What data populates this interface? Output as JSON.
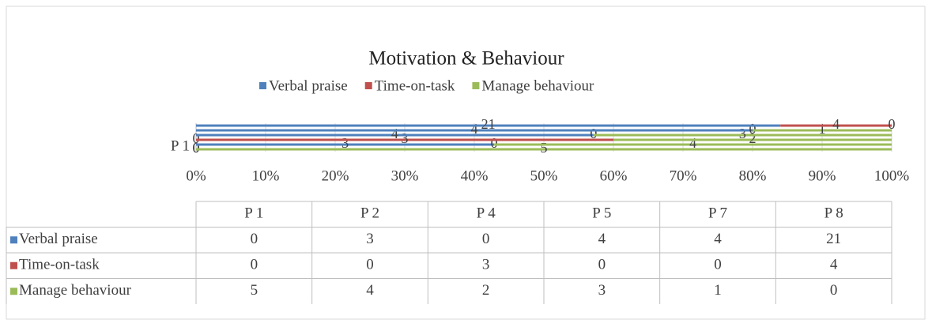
{
  "chart_data": {
    "type": "bar",
    "orientation": "horizontal",
    "stacking": "percent",
    "title": "Motivation & Behaviour",
    "categories": [
      "P 1",
      "P 2",
      "P 4",
      "P 5",
      "P 7",
      "P 8"
    ],
    "series": [
      {
        "name": "Verbal praise",
        "color": "#4f81bd",
        "values": [
          0,
          3,
          0,
          4,
          4,
          21
        ]
      },
      {
        "name": "Time-on-task",
        "color": "#c0504d",
        "values": [
          0,
          0,
          3,
          0,
          0,
          4
        ]
      },
      {
        "name": "Manage behaviour",
        "color": "#9bbb59",
        "values": [
          5,
          4,
          2,
          3,
          1,
          0
        ]
      }
    ],
    "xlim": [
      0,
      100
    ],
    "xticks": [
      {
        "value": 0,
        "label": "0%"
      },
      {
        "value": 10,
        "label": "10%"
      },
      {
        "value": 20,
        "label": "20%"
      },
      {
        "value": 30,
        "label": "30%"
      },
      {
        "value": 40,
        "label": "40%"
      },
      {
        "value": 50,
        "label": "50%"
      },
      {
        "value": 60,
        "label": "60%"
      },
      {
        "value": 70,
        "label": "70%"
      },
      {
        "value": 80,
        "label": "80%"
      },
      {
        "value": 90,
        "label": "90%"
      },
      {
        "value": 100,
        "label": "100%"
      }
    ],
    "grid": true,
    "legend": "top",
    "data_table": true
  }
}
